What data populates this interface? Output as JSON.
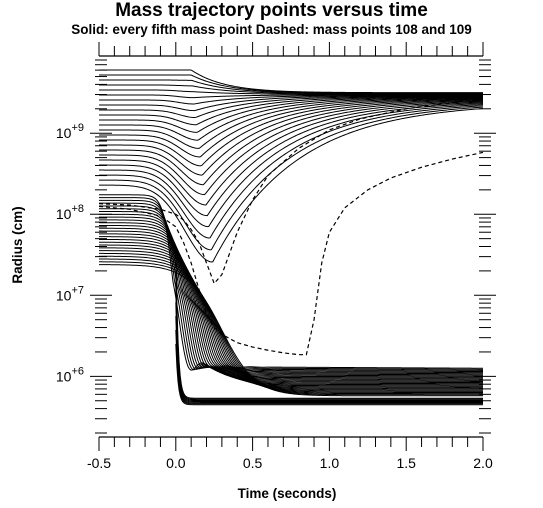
{
  "chart_data": {
    "type": "line",
    "title": "Mass trajectory points versus time",
    "subtitle": "Solid: every fifth mass point  Dashed: mass points 108 and 109",
    "xlabel": "Time (seconds)",
    "ylabel": "Radius (cm)",
    "xlim": [
      -0.5,
      2.0
    ],
    "ylim": [
      200000,
      8000000000
    ],
    "yscale": "log",
    "x_ticks": [
      "-0.5",
      "0.0",
      "0.5",
      "1.0",
      "1.5",
      "2.0"
    ],
    "x_tick_values": [
      -0.5,
      0.0,
      0.5,
      1.0,
      1.5,
      2.0
    ],
    "y_ticks": [
      {
        "base": "10",
        "exp": "+6",
        "value": 1000000
      },
      {
        "base": "10",
        "exp": "+7",
        "value": 10000000
      },
      {
        "base": "10",
        "exp": "+8",
        "value": 100000000
      },
      {
        "base": "10",
        "exp": "+9",
        "value": 1000000000
      }
    ],
    "grid": false,
    "series": [
      {
        "style": "dashed",
        "x": [
          -0.5,
          -0.3,
          -0.1,
          0.0,
          0.05,
          0.1,
          0.15,
          0.2,
          0.25,
          0.3,
          0.4,
          0.5,
          0.6,
          0.7,
          0.8,
          0.85,
          0.9,
          0.95,
          1.0,
          1.1,
          1.25,
          1.4,
          1.6,
          1.8,
          2.0
        ],
        "y": [
          125000000,
          115000000,
          95000000,
          70000000,
          45000000,
          25000000,
          12000000,
          6000000,
          4000000,
          3300000,
          2600000,
          2300000,
          2100000,
          1950000,
          1850000,
          1850000,
          5000000,
          25000000,
          60000000,
          120000000,
          200000000,
          280000000,
          380000000,
          480000000,
          580000000
        ]
      },
      {
        "style": "dashed",
        "x": [
          -0.5,
          -0.3,
          -0.1,
          0.0,
          0.05,
          0.1,
          0.15,
          0.2,
          0.25,
          0.3,
          0.4,
          0.5,
          0.6,
          0.8,
          1.0,
          1.2,
          1.5,
          2.0
        ],
        "y": [
          135000000,
          130000000,
          115000000,
          100000000,
          85000000,
          65000000,
          45000000,
          25000000,
          14000000,
          18000000,
          60000000,
          150000000,
          300000000,
          650000000,
          1100000000,
          1500000000,
          2000000000,
          2700000000
        ]
      }
    ]
  }
}
